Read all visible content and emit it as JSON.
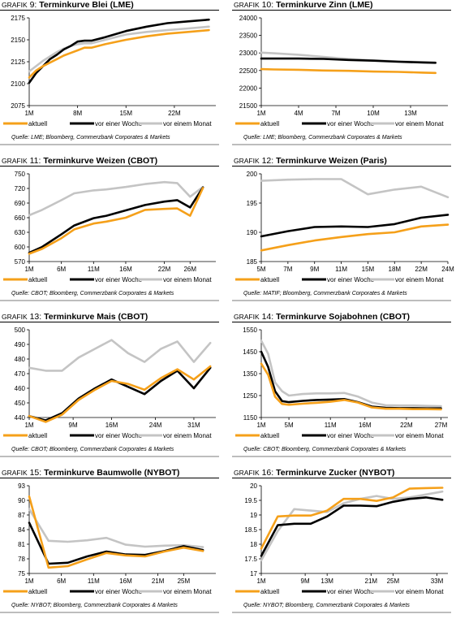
{
  "legend": [
    "aktuell",
    "vor einer Woche",
    "vor einem Monat"
  ],
  "colors": {
    "aktuell": "#f5a01a",
    "woche": "#000000",
    "monat": "#c4c4c4"
  },
  "panels": [
    {
      "label_prefix": "GRAFIK",
      "number": "9:",
      "name": "Terminkurve Blei (LME)",
      "source": "Quelle: LME; Bloomberg, Commerzbank Corporates & Markets"
    },
    {
      "label_prefix": "GRAFIK",
      "number": "10:",
      "name": "Terminkurve Zinn (LME)",
      "source": "Quelle: LME; Bloomberg, Commerzbank Corporates & Markets"
    },
    {
      "label_prefix": "GRAFIK",
      "number": "11:",
      "name": "Terminkurve Weizen (CBOT)",
      "source": "Quelle: CBOT; Bloomberg, Commerzbank Corporates & Markets"
    },
    {
      "label_prefix": "GRAFIK",
      "number": "12:",
      "name": "Terminkurve Weizen (Paris)",
      "source": "Quelle: MATIF; Bloomberg, Commerzbank Corporates & Markets"
    },
    {
      "label_prefix": "GRAFIK",
      "number": "13:",
      "name": "Terminkurve Mais (CBOT)",
      "source": "Quelle: CBOT; Bloomberg, Commerzbank Corporates & Markets"
    },
    {
      "label_prefix": "GRAFIK",
      "number": "14:",
      "name": "Terminkurve Sojabohnen (CBOT)",
      "source": "Quelle: CBOT; Bloomberg, Commerzbank Corporates & Markets"
    },
    {
      "label_prefix": "GRAFIK",
      "number": "15:",
      "name": "Terminkurve Baumwolle (NYBOT)",
      "source": "Quelle: NYBOT; Bloomberg, Commerzbank Corporates & Markets"
    },
    {
      "label_prefix": "GRAFIK",
      "number": "16:",
      "name": "Terminkurve Zucker (NYBOT)",
      "source": "Quelle: NYBOT; Bloomberg, Commerzbank Corporates & Markets"
    }
  ],
  "chart_data": [
    {
      "type": "line",
      "title": "Terminkurve Blei (LME)",
      "grid": false,
      "legend": "bottom",
      "ylim": [
        2075,
        2175
      ],
      "yticks": [
        2075,
        2100,
        2125,
        2150,
        2175
      ],
      "xlim": [
        1,
        28
      ],
      "xticks": [
        1,
        8,
        15,
        22
      ],
      "xticklabels": [
        "1M",
        "8M",
        "15M",
        "22M"
      ],
      "series": [
        {
          "name": "aktuell",
          "x": [
            1,
            2,
            3,
            4,
            5,
            6,
            7,
            8,
            9,
            10,
            12,
            15,
            18,
            21,
            24,
            27
          ],
          "values": [
            2107,
            2115,
            2120,
            2124,
            2128,
            2132,
            2135,
            2138,
            2141,
            2141,
            2145,
            2150,
            2154,
            2157,
            2159,
            2161
          ]
        },
        {
          "name": "vor einer Woche",
          "x": [
            1,
            2,
            3,
            4,
            5,
            6,
            7,
            8,
            9,
            10,
            12,
            15,
            18,
            21,
            24,
            27
          ],
          "values": [
            2101,
            2112,
            2120,
            2128,
            2133,
            2139,
            2143,
            2148,
            2149,
            2149,
            2153,
            2160,
            2165,
            2169,
            2171,
            2173
          ]
        },
        {
          "name": "vor einem Monat",
          "x": [
            1,
            2,
            3,
            4,
            5,
            6,
            7,
            8,
            9,
            10,
            12,
            15,
            18,
            21,
            24,
            27
          ],
          "values": [
            2114,
            2120,
            2126,
            2131,
            2136,
            2140,
            2143,
            2145,
            2146,
            2146,
            2150,
            2156,
            2159,
            2161,
            2163,
            2165
          ]
        }
      ]
    },
    {
      "type": "line",
      "title": "Terminkurve Zinn (LME)",
      "grid": false,
      "legend": "bottom",
      "ylim": [
        21500,
        24000
      ],
      "yticks": [
        21500,
        22000,
        22500,
        23000,
        23500,
        24000
      ],
      "xlim": [
        1,
        16
      ],
      "xticks": [
        1,
        4,
        7,
        10,
        13
      ],
      "xticklabels": [
        "1M",
        "4M",
        "7M",
        "10M",
        "13M"
      ],
      "series": [
        {
          "name": "aktuell",
          "x": [
            1,
            2,
            4,
            6,
            8,
            10,
            12,
            14,
            15
          ],
          "values": [
            22540,
            22530,
            22520,
            22500,
            22490,
            22470,
            22460,
            22440,
            22430
          ]
        },
        {
          "name": "vor einer Woche",
          "x": [
            1,
            2,
            4,
            6,
            8,
            10,
            12,
            14,
            15
          ],
          "values": [
            22840,
            22840,
            22840,
            22830,
            22800,
            22780,
            22750,
            22730,
            22720
          ]
        },
        {
          "name": "vor einem Monat",
          "x": [
            1,
            2,
            4,
            6,
            8,
            10,
            12,
            14,
            15
          ],
          "values": [
            23010,
            22990,
            22950,
            22890,
            22830,
            22790,
            22760,
            22740,
            22730
          ]
        }
      ]
    },
    {
      "type": "line",
      "title": "Terminkurve Weizen (CBOT)",
      "grid": false,
      "legend": "bottom",
      "ylim": [
        570,
        750
      ],
      "yticks": [
        570,
        600,
        630,
        660,
        690,
        720,
        750
      ],
      "xlim": [
        1,
        30
      ],
      "xticks": [
        1,
        6,
        11,
        16,
        22,
        26
      ],
      "xticklabels": [
        "1M",
        "6M",
        "11M",
        "16M",
        "22M",
        "26M"
      ],
      "series": [
        {
          "name": "aktuell",
          "x": [
            1,
            3,
            6,
            8,
            11,
            13,
            16,
            19,
            22,
            24,
            26,
            28
          ],
          "values": [
            586,
            596,
            618,
            636,
            648,
            652,
            660,
            676,
            678,
            679,
            664,
            721
          ]
        },
        {
          "name": "vor einer Woche",
          "x": [
            1,
            3,
            6,
            8,
            11,
            13,
            16,
            19,
            22,
            24,
            26,
            28
          ],
          "values": [
            588,
            600,
            626,
            644,
            659,
            664,
            675,
            686,
            693,
            696,
            681,
            722
          ]
        },
        {
          "name": "vor einem Monat",
          "x": [
            1,
            3,
            6,
            8,
            11,
            13,
            16,
            19,
            22,
            24,
            26,
            28
          ],
          "values": [
            665,
            676,
            696,
            710,
            716,
            718,
            723,
            729,
            733,
            731,
            703,
            723
          ]
        }
      ]
    },
    {
      "type": "line",
      "title": "Terminkurve Weizen (Paris)",
      "grid": false,
      "legend": "bottom",
      "ylim": [
        185,
        200
      ],
      "yticks": [
        185,
        190,
        195,
        200
      ],
      "xlim": [
        1,
        8
      ],
      "xticks": [
        1,
        2,
        3,
        4,
        5,
        6,
        7,
        8
      ],
      "xticklabels": [
        "5M",
        "7M",
        "9M",
        "11M",
        "15M",
        "18M",
        "22M",
        "24M"
      ],
      "series": [
        {
          "name": "aktuell",
          "x": [
            1,
            2,
            3,
            4,
            5,
            6,
            7,
            8
          ],
          "values": [
            186.9,
            187.8,
            188.6,
            189.2,
            189.7,
            190.0,
            191.0,
            191.3
          ]
        },
        {
          "name": "vor einer Woche",
          "x": [
            1,
            2,
            3,
            4,
            5,
            6,
            7,
            8
          ],
          "values": [
            189.3,
            190.2,
            190.9,
            191.0,
            190.9,
            191.4,
            192.5,
            193.0
          ]
        },
        {
          "name": "vor einem Monat",
          "x": [
            1,
            2,
            3,
            4,
            5,
            6,
            7,
            8
          ],
          "values": [
            198.8,
            199.0,
            199.1,
            199.1,
            196.5,
            197.3,
            197.8,
            196.0
          ]
        }
      ]
    },
    {
      "type": "line",
      "title": "Terminkurve Mais (CBOT)",
      "grid": false,
      "legend": "bottom",
      "ylim": [
        440,
        500
      ],
      "yticks": [
        440,
        450,
        460,
        470,
        480,
        490,
        500
      ],
      "xlim": [
        1,
        35
      ],
      "xticks": [
        1,
        9,
        16,
        24,
        31
      ],
      "xticklabels": [
        "1M",
        "9M",
        "16M",
        "24M",
        "31M"
      ],
      "series": [
        {
          "name": "aktuell",
          "x": [
            1,
            4,
            7,
            10,
            13,
            16,
            19,
            22,
            25,
            28,
            31,
            34
          ],
          "values": [
            441,
            437,
            442,
            452,
            459,
            465,
            463,
            459,
            467,
            473,
            466,
            475
          ]
        },
        {
          "name": "vor einer Woche",
          "x": [
            1,
            4,
            7,
            10,
            13,
            16,
            19,
            22,
            25,
            28,
            31,
            34
          ],
          "values": [
            441,
            438,
            443,
            453,
            460,
            466,
            461,
            456,
            465,
            472,
            460,
            474
          ]
        },
        {
          "name": "vor einem Monat",
          "x": [
            1,
            4,
            7,
            10,
            13,
            16,
            19,
            22,
            25,
            28,
            31,
            34
          ],
          "values": [
            474,
            472,
            472,
            481,
            487,
            493,
            484,
            478,
            487,
            492,
            478,
            491
          ]
        }
      ]
    },
    {
      "type": "line",
      "title": "Terminkurve Sojabohnen (CBOT)",
      "grid": false,
      "legend": "bottom",
      "ylim": [
        1150,
        1550
      ],
      "yticks": [
        1150,
        1250,
        1350,
        1450,
        1550
      ],
      "xlim": [
        1,
        28
      ],
      "xticks": [
        1,
        5,
        11,
        16,
        22,
        27
      ],
      "xticklabels": [
        "1M",
        "5M",
        "11M",
        "16M",
        "22M",
        "27M"
      ],
      "series": [
        {
          "name": "aktuell",
          "x": [
            1,
            2,
            3,
            4,
            5,
            7,
            9,
            11,
            13,
            15,
            17,
            19,
            21,
            23,
            25,
            27
          ],
          "values": [
            1395,
            1345,
            1245,
            1212,
            1208,
            1213,
            1217,
            1222,
            1230,
            1218,
            1196,
            1190,
            1190,
            1188,
            1188,
            1187
          ]
        },
        {
          "name": "vor einer Woche",
          "x": [
            1,
            2,
            3,
            4,
            5,
            7,
            9,
            11,
            13,
            15,
            17,
            19,
            21,
            23,
            25,
            27
          ],
          "values": [
            1450,
            1380,
            1270,
            1225,
            1220,
            1226,
            1230,
            1232,
            1234,
            1220,
            1200,
            1194,
            1193,
            1193,
            1192,
            1192
          ]
        },
        {
          "name": "vor einem Monat",
          "x": [
            1,
            2,
            3,
            4,
            5,
            7,
            9,
            11,
            13,
            15,
            17,
            19,
            21,
            23,
            25,
            27
          ],
          "values": [
            1500,
            1440,
            1310,
            1270,
            1250,
            1257,
            1260,
            1260,
            1262,
            1245,
            1218,
            1206,
            1205,
            1205,
            1203,
            1202
          ]
        }
      ]
    },
    {
      "type": "line",
      "title": "Terminkurve Baumwolle (NYBOT)",
      "grid": false,
      "legend": "bottom",
      "ylim": [
        75,
        93
      ],
      "yticks": [
        75,
        78,
        81,
        84,
        87,
        90,
        93
      ],
      "xlim": [
        1,
        30
      ],
      "xticks": [
        1,
        6,
        11,
        16,
        21,
        25
      ],
      "xticklabels": [
        "1M",
        "6M",
        "11M",
        "16M",
        "21M",
        "25M"
      ],
      "series": [
        {
          "name": "aktuell",
          "x": [
            1,
            4,
            7,
            10,
            13,
            16,
            19,
            22,
            25,
            28
          ],
          "values": [
            90.8,
            76.2,
            76.5,
            77.9,
            79.2,
            78.7,
            78.5,
            79.5,
            80.3,
            79.6
          ]
        },
        {
          "name": "vor einer Woche",
          "x": [
            1,
            4,
            7,
            10,
            13,
            16,
            19,
            22,
            25,
            28
          ],
          "values": [
            85.4,
            77.0,
            77.2,
            78.5,
            79.5,
            78.9,
            78.8,
            79.6,
            80.6,
            79.8
          ]
        },
        {
          "name": "vor einem Monat",
          "x": [
            1,
            4,
            7,
            10,
            13,
            16,
            19,
            22,
            25,
            28
          ],
          "values": [
            88.2,
            81.7,
            81.5,
            81.8,
            82.3,
            80.9,
            80.5,
            80.7,
            80.8,
            80.4
          ]
        }
      ]
    },
    {
      "type": "line",
      "title": "Terminkurve Zucker (NYBOT)",
      "grid": false,
      "legend": "bottom",
      "ylim": [
        17.0,
        20.0
      ],
      "yticks": [
        17.0,
        17.5,
        18.0,
        18.5,
        19.0,
        19.5,
        20.0
      ],
      "xlim": [
        1,
        35
      ],
      "xticks": [
        1,
        9,
        13,
        21,
        25,
        33
      ],
      "xticklabels": [
        "1M",
        "9M",
        "13M",
        "21M",
        "25M",
        "33M"
      ],
      "series": [
        {
          "name": "aktuell",
          "x": [
            1,
            4,
            7,
            10,
            13,
            16,
            19,
            22,
            25,
            28,
            31,
            34
          ],
          "values": [
            17.85,
            18.95,
            18.98,
            18.98,
            19.15,
            19.55,
            19.55,
            19.48,
            19.6,
            19.9,
            19.92,
            19.93
          ]
        },
        {
          "name": "vor einer Woche",
          "x": [
            1,
            4,
            7,
            10,
            13,
            16,
            19,
            22,
            25,
            28,
            31,
            34
          ],
          "values": [
            17.6,
            18.65,
            18.7,
            18.7,
            18.95,
            19.32,
            19.32,
            19.3,
            19.45,
            19.55,
            19.6,
            19.52
          ]
        },
        {
          "name": "vor einem Monat",
          "x": [
            1,
            4,
            7,
            10,
            13,
            16,
            19,
            22,
            25,
            28,
            31,
            34
          ],
          "values": [
            17.45,
            18.45,
            19.2,
            19.15,
            19.1,
            19.4,
            19.55,
            19.65,
            19.55,
            19.6,
            19.7,
            19.8
          ]
        }
      ]
    }
  ]
}
